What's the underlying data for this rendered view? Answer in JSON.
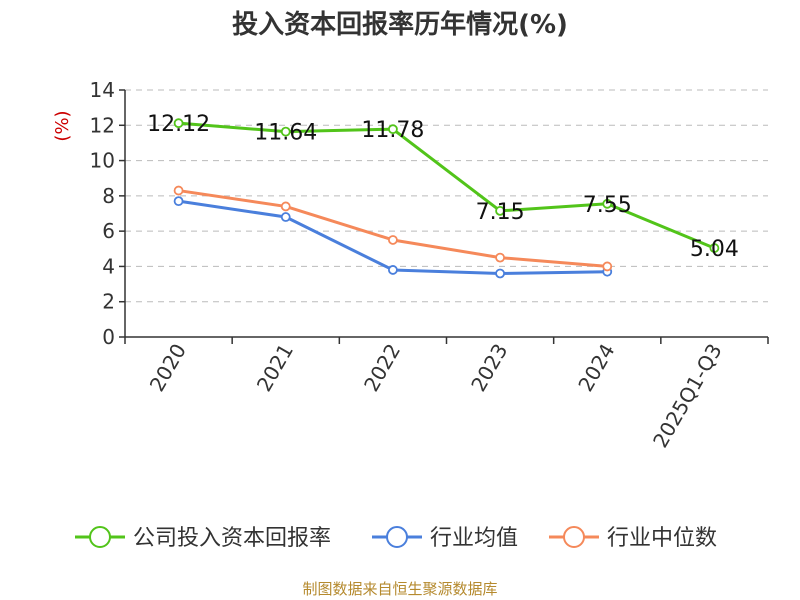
{
  "chart_data": {
    "type": "line",
    "title": "投入资本回报率历年情况(%)",
    "ylabel": "(%)",
    "xlabel": "",
    "categories": [
      "2020",
      "2021",
      "2022",
      "2023",
      "2024",
      "2025Q1-Q3"
    ],
    "ylim": [
      0,
      14
    ],
    "yticks": [
      0,
      2,
      4,
      6,
      8,
      10,
      12,
      14
    ],
    "grid": true,
    "legend_position": "bottom",
    "series": [
      {
        "name": "公司投入资本回报率",
        "color": "#52c41a",
        "values": [
          12.12,
          11.64,
          11.78,
          7.15,
          7.55,
          5.04
        ],
        "labels": [
          "12.12",
          "11.64",
          "11.78",
          "7.15",
          "7.55",
          "5.04"
        ]
      },
      {
        "name": "行业均值",
        "color": "#4a7fdc",
        "values": [
          7.7,
          6.8,
          3.8,
          3.6,
          3.7,
          null
        ]
      },
      {
        "name": "行业中位数",
        "color": "#f5895a",
        "values": [
          8.3,
          7.4,
          5.5,
          4.5,
          4.0,
          null
        ]
      }
    ]
  },
  "source": "制图数据来自恒生聚源数据库"
}
